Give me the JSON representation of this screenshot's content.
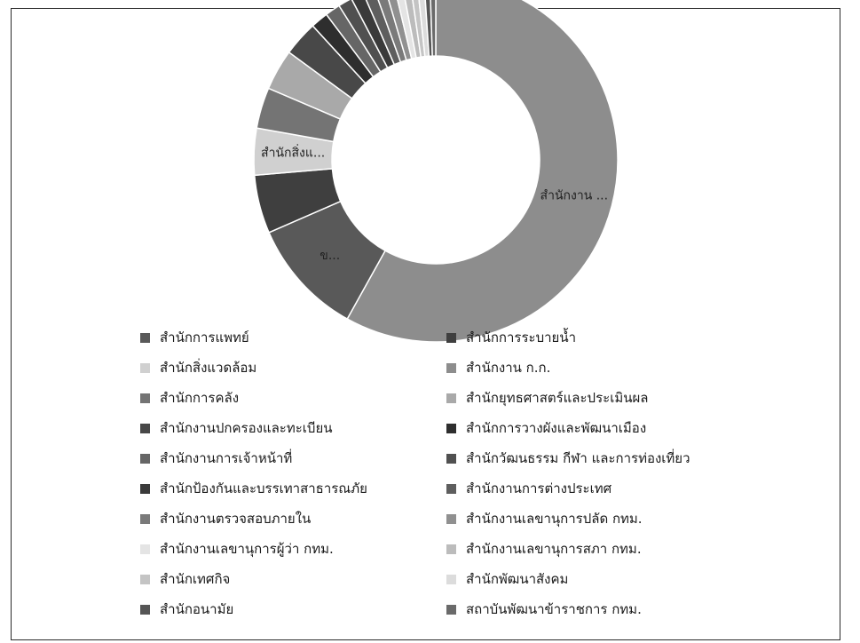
{
  "chart_data": {
    "type": "pie",
    "donut": true,
    "title": "",
    "legend_position": "bottom",
    "slice_labels": [
      "สำนักงาน ...",
      "ข...",
      "สำนักสิ่งแ..."
    ],
    "slices": [
      {
        "name": "สำนักงาน ก.ก.",
        "value": 56.0,
        "color": "#8d8d8d"
      },
      {
        "name": "สำนักการแพทย์",
        "value": 10.0,
        "color": "#595959"
      },
      {
        "name": "สำนักการระบายน้ำ",
        "value": 5.0,
        "color": "#3f3f3f"
      },
      {
        "name": "สำนักสิ่งแวดล้อม",
        "value": 4.0,
        "color": "#d0d0d0"
      },
      {
        "name": "สำนักการคลัง",
        "value": 3.5,
        "color": "#747474"
      },
      {
        "name": "สำนักยุทธศาสตร์และประเมินผล",
        "value": 3.5,
        "color": "#a9a9a9"
      },
      {
        "name": "สำนักงานปกครองและทะเบียน",
        "value": 3.0,
        "color": "#484848"
      },
      {
        "name": "สำนักการวางผังและพัฒนาเมือง",
        "value": 1.5,
        "color": "#2e2e2e"
      },
      {
        "name": "สำนักงานการเจ้าหน้าที่",
        "value": 1.3,
        "color": "#666666"
      },
      {
        "name": "สำนักวัฒนธรรม กีฬา และการท่องเที่ยว",
        "value": 1.2,
        "color": "#505050"
      },
      {
        "name": "สำนักป้องกันและบรรเทาสาธารณภัย",
        "value": 1.1,
        "color": "#3a3a3a"
      },
      {
        "name": "สำนักงานการต่างประเทศ",
        "value": 1.0,
        "color": "#5e5e5e"
      },
      {
        "name": "สำนักงานตรวจสอบภายใน",
        "value": 0.9,
        "color": "#7a7a7a"
      },
      {
        "name": "สำนักงานเลขานุการปลัด กทม.",
        "value": 0.8,
        "color": "#909090"
      },
      {
        "name": "สำนักงานเลขานุการผู้ว่า กทม.",
        "value": 0.7,
        "color": "#e4e4e4"
      },
      {
        "name": "สำนักงานเลขานุการสภา กทม.",
        "value": 0.7,
        "color": "#bcbcbc"
      },
      {
        "name": "สำนักเทศกิจ",
        "value": 0.6,
        "color": "#c4c4c4"
      },
      {
        "name": "สำนักพัฒนาสังคม",
        "value": 0.6,
        "color": "#dcdcdc"
      },
      {
        "name": "สำนักอนามัย",
        "value": 0.5,
        "color": "#555555"
      },
      {
        "name": "สถาบันพัฒนาข้าราชการ กทม.",
        "value": 0.5,
        "color": "#6a6a6a"
      }
    ],
    "legend": [
      "สำนักการแพทย์",
      "สำนักการระบายน้ำ",
      "สำนักสิ่งแวดล้อม",
      "สำนักงาน ก.ก.",
      "สำนักการคลัง",
      "สำนักยุทธศาสตร์และประเมินผล",
      "สำนักงานปกครองและทะเบียน",
      "สำนักการวางผังและพัฒนาเมือง",
      "สำนักงานการเจ้าหน้าที่",
      "สำนักวัฒนธรรม กีฬา และการท่องเที่ยว",
      "สำนักป้องกันและบรรเทาสาธารณภัย",
      "สำนักงานการต่างประเทศ",
      "สำนักงานตรวจสอบภายใน",
      "สำนักงานเลขานุการปลัด กทม.",
      "สำนักงานเลขานุการผู้ว่า กทม.",
      "สำนักงานเลขานุการสภา กทม.",
      "สำนักเทศกิจ",
      "สำนักพัฒนาสังคม",
      "สำนักอนามัย",
      "สถาบันพัฒนาข้าราชการ กทม."
    ]
  }
}
